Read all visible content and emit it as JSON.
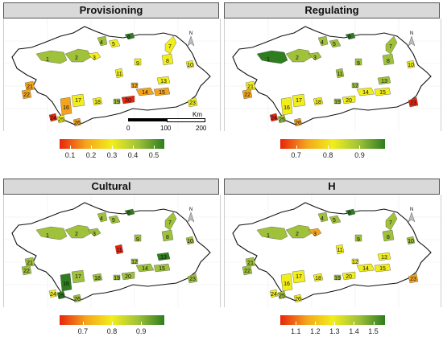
{
  "panels": [
    {
      "title": "Provisioning",
      "legend_ticks": [
        "0.1",
        "0.2",
        "0.3",
        "0.4",
        "0.5"
      ],
      "legend_range": [
        0.05,
        0.55
      ]
    },
    {
      "title": "Regulating",
      "legend_ticks": [
        "0.7",
        "0.8",
        "0.9"
      ],
      "legend_range": [
        0.65,
        0.98
      ]
    },
    {
      "title": "Cultural",
      "legend_ticks": [
        "0.7",
        "0.8",
        "0.9"
      ],
      "legend_range": [
        0.62,
        0.98
      ]
    },
    {
      "title": "H",
      "legend_ticks": [
        "1.1",
        "1.2",
        "1.3",
        "1.4",
        "1.5"
      ],
      "legend_range": [
        1.02,
        1.56
      ]
    }
  ],
  "scale_bar": {
    "labels": [
      "0",
      "100",
      "200"
    ],
    "unit": "Km"
  },
  "north_arrow_label": "N",
  "area_labels": [
    "1",
    "2",
    "3",
    "4",
    "5",
    "6",
    "7",
    "8",
    "9",
    "10",
    "11",
    "12",
    "13",
    "14",
    "15",
    "16",
    "17",
    "18",
    "19",
    "20",
    "21",
    "22",
    "23",
    "24",
    "25",
    "26"
  ],
  "colors": {
    "low": "#e8250c",
    "mid_low": "#f4a41c",
    "mid": "#f2ee1c",
    "mid_high": "#9fc23a",
    "high": "#2e7d1e"
  }
}
